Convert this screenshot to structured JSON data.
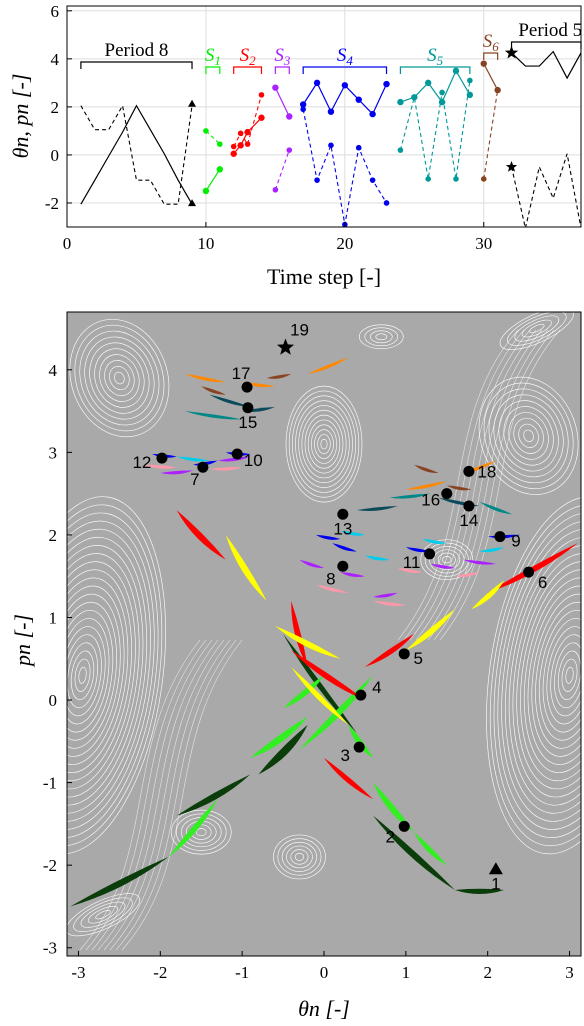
{
  "chart_data": [
    {
      "type": "line",
      "xlabel": "Time step [-]",
      "ylabel": "θn, pn [-]",
      "xlim": [
        0,
        37
      ],
      "ylim": [
        -3,
        6.2
      ],
      "xticks": [
        "0",
        "10",
        "20",
        "30"
      ],
      "yticks": [
        "-2",
        "0",
        "2",
        "4",
        "6"
      ],
      "grid": true,
      "segments": [
        {
          "label": "Period 8",
          "color": "#000000",
          "x_range": [
            1,
            9
          ],
          "theta": {
            "x": [
              1,
              2,
              3,
              4,
              5,
              6,
              7,
              8,
              9
            ],
            "y": [
              -2.05,
              -1.05,
              -0.05,
              0.95,
              2.05,
              1.05,
              0.05,
              -1.05,
              -2.05
            ]
          },
          "p": {
            "x": [
              1,
              2,
              3,
              4,
              5,
              6,
              7,
              8,
              9
            ],
            "y": [
              2.05,
              1.05,
              1.05,
              2.05,
              -1.05,
              -1.05,
              -2.05,
              -2.05,
              2.05
            ]
          }
        },
        {
          "label": "S1",
          "color": "#00ee00",
          "x_range": [
            10,
            11
          ],
          "theta": {
            "x": [
              10,
              11
            ],
            "y": [
              -1.5,
              -0.6
            ]
          },
          "p": {
            "x": [
              10,
              11
            ],
            "y": [
              1.0,
              0.45
            ]
          }
        },
        {
          "label": "S2",
          "color": "#ff0000",
          "x_range": [
            12,
            14
          ],
          "theta": {
            "x": [
              12,
              12.5,
              13,
              14
            ],
            "y": [
              0.05,
              0.4,
              0.95,
              1.55
            ]
          },
          "p": {
            "x": [
              12,
              12.5,
              13,
              14
            ],
            "y": [
              0.35,
              0.9,
              0.45,
              2.5
            ]
          }
        },
        {
          "label": "S3",
          "color": "#aa22ff",
          "x_range": [
            15,
            16
          ],
          "theta": {
            "x": [
              15,
              16
            ],
            "y": [
              2.8,
              1.6
            ]
          },
          "p": {
            "x": [
              15,
              16
            ],
            "y": [
              -1.45,
              0.2
            ]
          }
        },
        {
          "label": "S4",
          "color": "#0000ee",
          "x_range": [
            17,
            23
          ],
          "theta": {
            "x": [
              17,
              18,
              19,
              20,
              21,
              22,
              23
            ],
            "y": [
              2.1,
              3.0,
              1.8,
              2.9,
              2.3,
              1.7,
              2.95
            ]
          },
          "p": {
            "x": [
              17,
              18,
              19,
              20,
              21,
              22,
              23
            ],
            "y": [
              1.9,
              -1.05,
              0.4,
              -2.9,
              0.3,
              -1.05,
              -2.0
            ]
          }
        },
        {
          "label": "S5",
          "color": "#009999",
          "x_range": [
            24,
            29
          ],
          "theta": {
            "x": [
              24,
              25,
              26,
              27,
              28,
              29
            ],
            "y": [
              2.2,
              2.4,
              3.0,
              2.2,
              3.5,
              2.5
            ]
          },
          "p": {
            "x": [
              24,
              25,
              26,
              27,
              28,
              29
            ],
            "y": [
              0.2,
              2.4,
              -1.0,
              2.6,
              -1.0,
              3.1
            ]
          }
        },
        {
          "label": "S6",
          "color": "#884422",
          "x_range": [
            30,
            31
          ],
          "theta": {
            "x": [
              30,
              31
            ],
            "y": [
              3.8,
              2.7
            ]
          },
          "p": {
            "x": [
              30,
              31
            ],
            "y": [
              -1.0,
              2.7
            ]
          }
        },
        {
          "label": "Period 5",
          "color": "#000000",
          "x_range": [
            32,
            37
          ],
          "theta": {
            "x": [
              32,
              33,
              34,
              35,
              36,
              37
            ],
            "y": [
              4.25,
              3.7,
              3.7,
              4.3,
              3.2,
              4.25
            ]
          },
          "p": {
            "x": [
              32,
              33,
              34,
              35,
              36,
              37
            ],
            "y": [
              -0.5,
              -3.05,
              -0.5,
              -1.8,
              0.05,
              -3.05
            ]
          }
        }
      ]
    },
    {
      "type": "scatter",
      "xlabel": "θn [-]",
      "ylabel": "pn [-]",
      "xlim": [
        -3.14,
        3.14
      ],
      "ylim": [
        -3.1,
        4.7
      ],
      "xticks": [
        "-3",
        "-2",
        "-1",
        "0",
        "1",
        "2",
        "3"
      ],
      "yticks": [
        "-3",
        "-2",
        "-1",
        "0",
        "1",
        "2",
        "3",
        "4"
      ],
      "background": "#a9a9a9",
      "points": [
        {
          "label": "1",
          "x": 2.1,
          "y": -2.05,
          "marker": "triangle"
        },
        {
          "label": "2",
          "x": 0.98,
          "y": -1.53,
          "marker": "circle"
        },
        {
          "label": "3",
          "x": 0.43,
          "y": -0.57,
          "marker": "circle"
        },
        {
          "label": "4",
          "x": 0.45,
          "y": 0.06,
          "marker": "circle"
        },
        {
          "label": "5",
          "x": 0.98,
          "y": 0.56,
          "marker": "circle"
        },
        {
          "label": "6",
          "x": 2.5,
          "y": 1.55,
          "marker": "circle"
        },
        {
          "label": "7",
          "x": -1.48,
          "y": 2.82,
          "marker": "circle"
        },
        {
          "label": "8",
          "x": 0.23,
          "y": 1.62,
          "marker": "circle"
        },
        {
          "label": "9",
          "x": 2.15,
          "y": 1.98,
          "marker": "circle"
        },
        {
          "label": "10",
          "x": -1.06,
          "y": 2.98,
          "marker": "circle"
        },
        {
          "label": "11",
          "x": 1.29,
          "y": 1.77,
          "marker": "circle"
        },
        {
          "label": "12",
          "x": -1.98,
          "y": 2.93,
          "marker": "circle"
        },
        {
          "label": "13",
          "x": 0.23,
          "y": 2.25,
          "marker": "circle"
        },
        {
          "label": "14",
          "x": 1.77,
          "y": 2.35,
          "marker": "circle"
        },
        {
          "label": "15",
          "x": -0.93,
          "y": 3.54,
          "marker": "circle"
        },
        {
          "label": "16",
          "x": 1.5,
          "y": 2.5,
          "marker": "circle"
        },
        {
          "label": "17",
          "x": -0.94,
          "y": 3.79,
          "marker": "circle"
        },
        {
          "label": "18",
          "x": 1.77,
          "y": 2.77,
          "marker": "circle"
        },
        {
          "label": "19",
          "x": -0.47,
          "y": 4.27,
          "marker": "star"
        }
      ]
    }
  ]
}
